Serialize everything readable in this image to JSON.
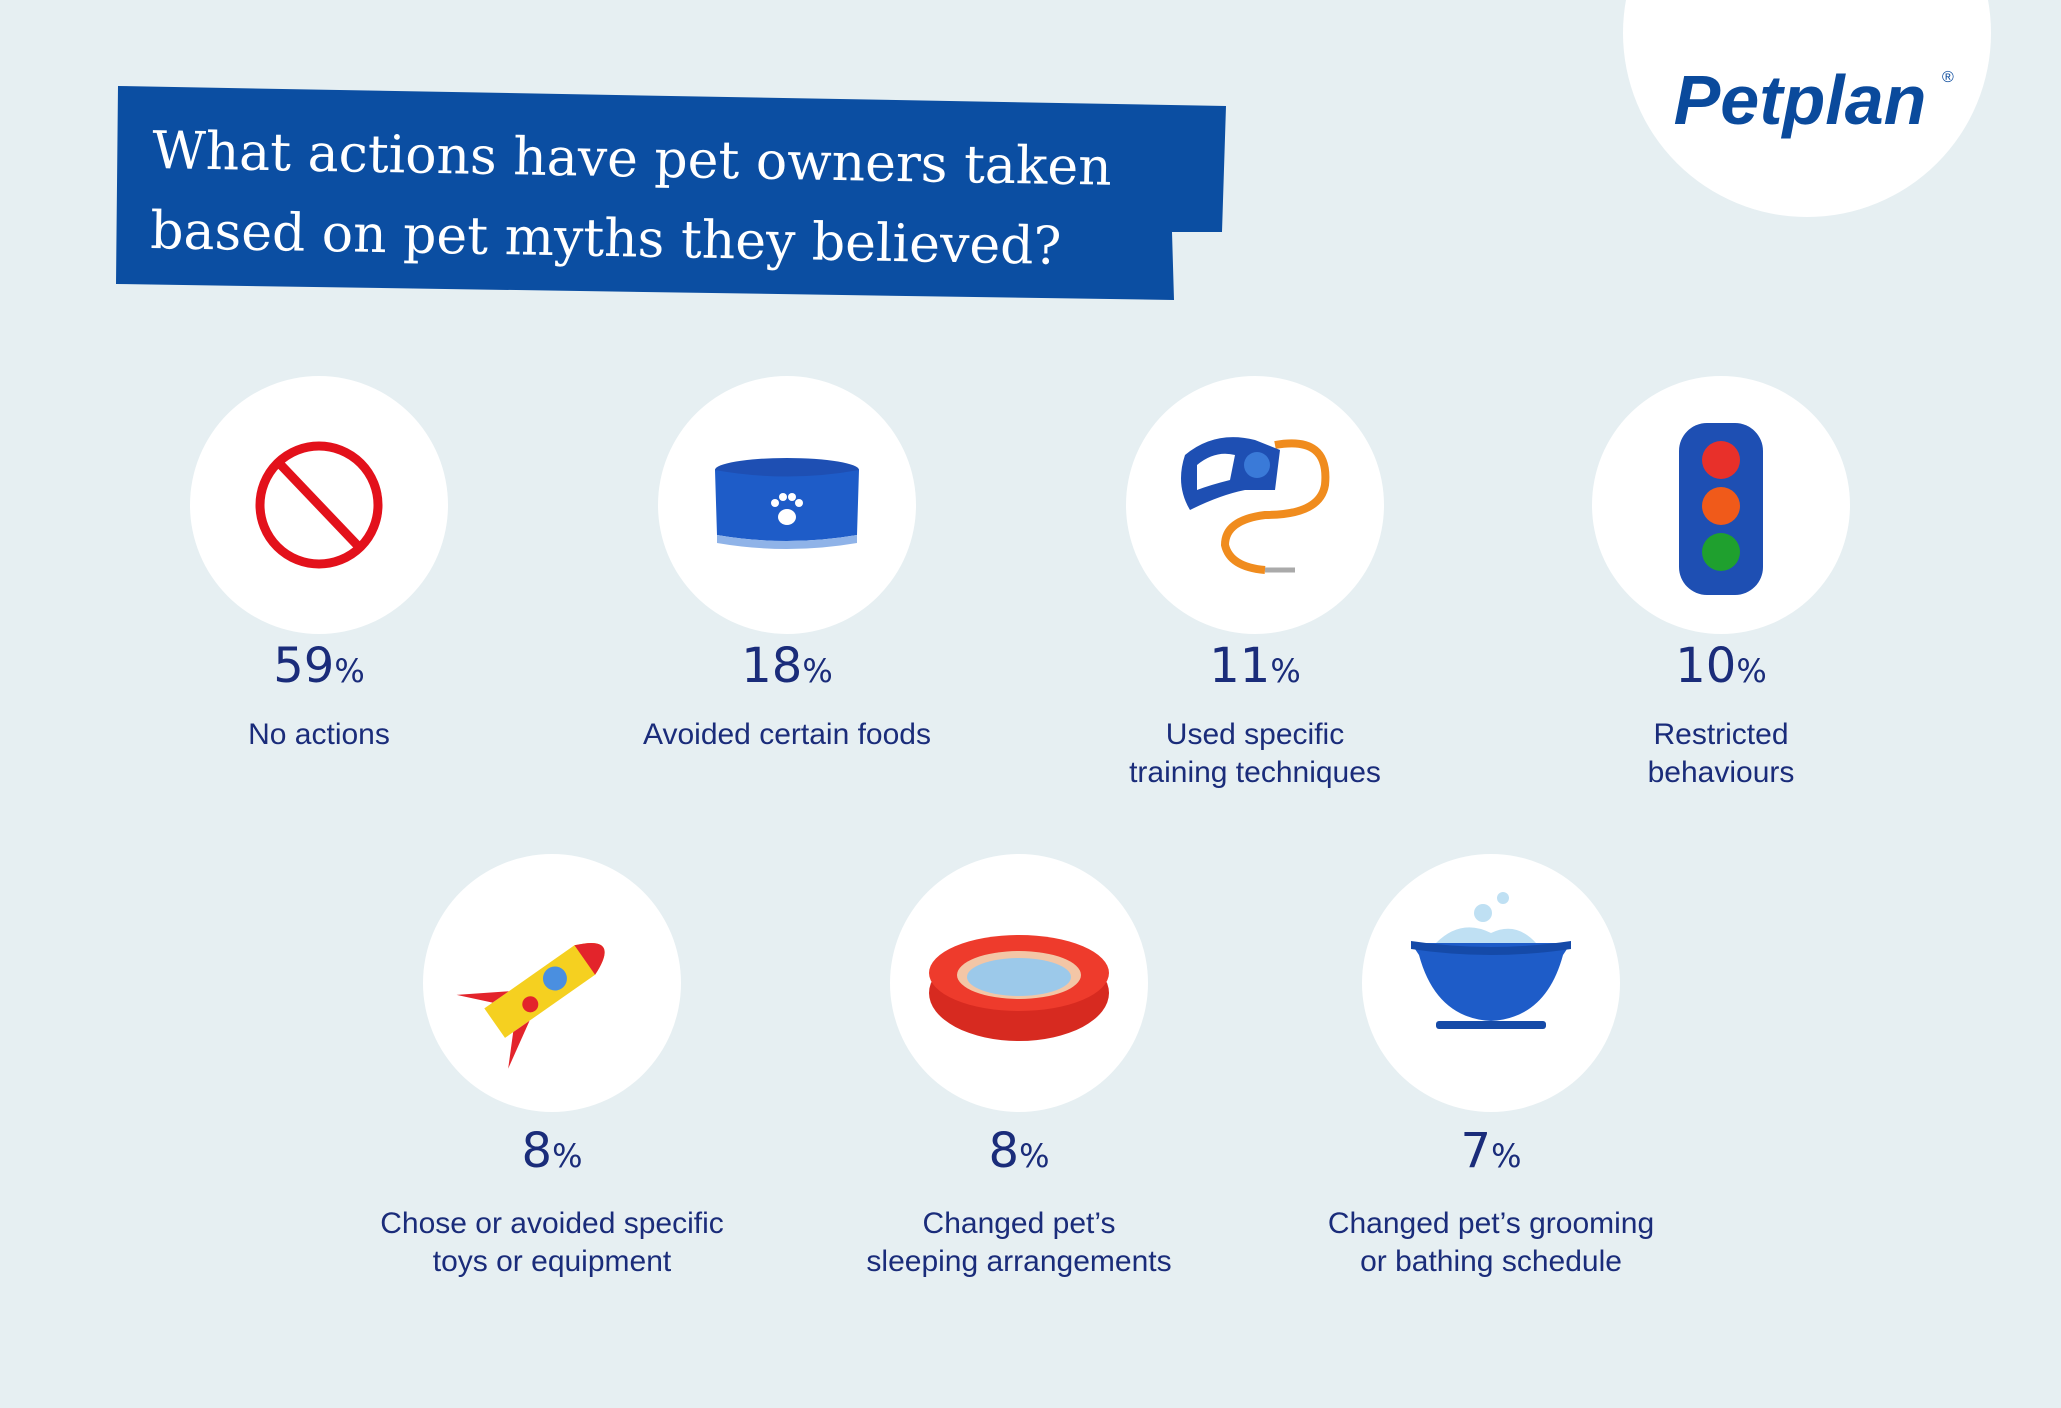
{
  "title": {
    "lines": [
      "What actions have pet owners taken",
      "based on pet myths they believed?"
    ]
  },
  "logo": {
    "text": "Petplan",
    "mark": "®"
  },
  "stats": [
    {
      "value": 59,
      "unit": "%",
      "label": [
        "No actions"
      ]
    },
    {
      "value": 18,
      "unit": "%",
      "label": [
        "Avoided certain foods"
      ]
    },
    {
      "value": 11,
      "unit": "%",
      "label": [
        "Used specific",
        "training techniques"
      ]
    },
    {
      "value": 10,
      "unit": "%",
      "label": [
        "Restricted",
        "behaviours"
      ]
    },
    {
      "value": 8,
      "unit": "%",
      "label": [
        "Chose or avoided specific",
        "toys or equipment"
      ]
    },
    {
      "value": 8,
      "unit": "%",
      "label": [
        "Changed pet’s",
        "sleeping arrangements"
      ]
    },
    {
      "value": 7,
      "unit": "%",
      "label": [
        "Changed pet’s grooming",
        "or bathing schedule"
      ]
    }
  ]
}
